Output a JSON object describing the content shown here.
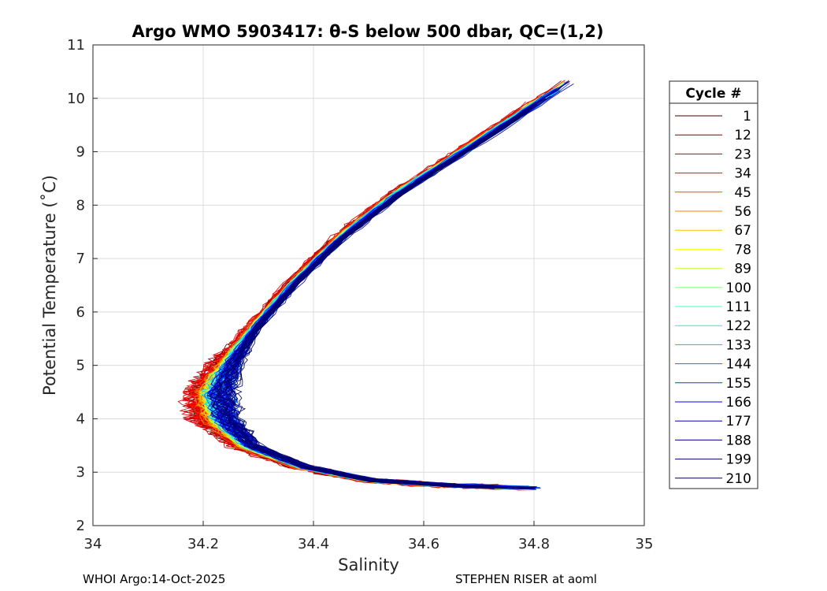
{
  "chart_data": {
    "type": "line",
    "title": "Argo WMO 5903417: θ-S below 500 dbar,  QC=(1,2)",
    "xlabel": "Salinity",
    "ylabel": "Potential Temperature (˚C)",
    "xlim": [
      34,
      35
    ],
    "ylim": [
      2,
      11
    ],
    "xticks": [
      "34",
      "34.2",
      "34.4",
      "34.6",
      "34.8",
      "35"
    ],
    "yticks": [
      "2",
      "3",
      "4",
      "5",
      "6",
      "7",
      "8",
      "9",
      "10",
      "11"
    ],
    "grid": true,
    "legend": {
      "title": "Cycle #",
      "placement": "outside-right",
      "entries": [
        "1",
        "12",
        "23",
        "34",
        "45",
        "56",
        "67",
        "78",
        "89",
        "100",
        "111",
        "122",
        "133",
        "144",
        "155",
        "166",
        "177",
        "188",
        "199",
        "210"
      ],
      "colors": [
        "#400000",
        "#800000",
        "#bf0000",
        "#ff0000",
        "#ff4000",
        "#ff8000",
        "#ffbf00",
        "#ffff00",
        "#bfff40",
        "#80ff80",
        "#40ffbf",
        "#00ffff",
        "#00bfff",
        "#0080ff",
        "#0040ff",
        "#0000ff",
        "#0000bf",
        "#000080",
        "#000060",
        "#000040"
      ]
    },
    "series_color_scale": {
      "colors": [
        "#400000",
        "#bf0000",
        "#ff0000",
        "#ff8000",
        "#ffbf00",
        "#ffff00",
        "#80ff80",
        "#00ffff",
        "#0080ff",
        "#0000ff",
        "#0000a0",
        "#000060"
      ]
    },
    "curve_shape_summary": {
      "description": "theta-S curves: from ~10.3 C at ~34.85 PSU down to a salinity minimum ~34.2-34.3 near 4.3 C, then increasing salinity to ~34.7-34.9 near 2.7-3.5 C",
      "mean_path": [
        [
          34.86,
          10.3
        ],
        [
          34.7,
          9.2
        ],
        [
          34.55,
          8.2
        ],
        [
          34.45,
          7.4
        ],
        [
          34.37,
          6.6
        ],
        [
          34.3,
          5.8
        ],
        [
          34.25,
          5.1
        ],
        [
          34.22,
          4.5
        ],
        [
          34.23,
          4.0
        ],
        [
          34.28,
          3.5
        ],
        [
          34.38,
          3.1
        ],
        [
          34.5,
          2.85
        ],
        [
          34.65,
          2.75
        ],
        [
          34.8,
          2.7
        ]
      ]
    }
  },
  "footer": {
    "left": "WHOI Argo:14-Oct-2025",
    "right": "STEPHEN RISER at aoml"
  }
}
